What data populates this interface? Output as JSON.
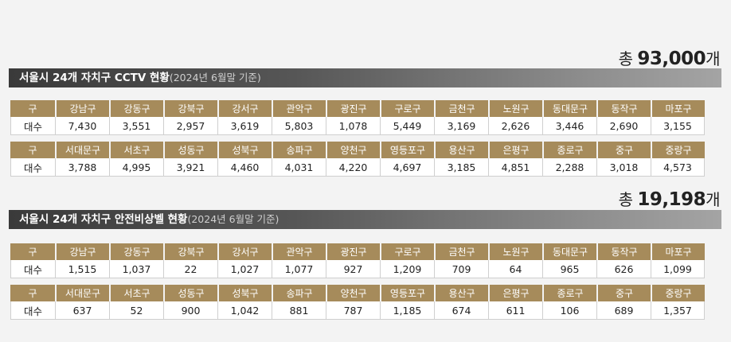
{
  "cctv": {
    "total_prefix": "총 ",
    "total_value": "93,000",
    "total_suffix": "개",
    "title_main": "서울시 24개 자치구 CCTV 현황",
    "title_sub": "(2024년 6월말 기준)",
    "tables": [
      {
        "header_label": "구",
        "value_label": "대수",
        "districts": [
          "강남구",
          "강동구",
          "강북구",
          "강서구",
          "관악구",
          "광진구",
          "구로구",
          "금천구",
          "노원구",
          "동대문구",
          "동작구",
          "마포구"
        ],
        "values": [
          "7,430",
          "3,551",
          "2,957",
          "3,619",
          "5,803",
          "1,078",
          "5,449",
          "3,169",
          "2,626",
          "3,446",
          "2,690",
          "3,155"
        ]
      },
      {
        "header_label": "구",
        "value_label": "대수",
        "districts": [
          "서대문구",
          "서초구",
          "성동구",
          "성북구",
          "송파구",
          "양천구",
          "영등포구",
          "용산구",
          "은평구",
          "종로구",
          "중구",
          "중랑구"
        ],
        "values": [
          "3,788",
          "4,995",
          "3,921",
          "4,460",
          "4,031",
          "4,220",
          "4,697",
          "3,185",
          "4,851",
          "2,288",
          "3,018",
          "4,573"
        ]
      }
    ]
  },
  "bell": {
    "total_prefix": "총 ",
    "total_value": "19,198",
    "total_suffix": "개",
    "title_main": "서울시 24개 자치구 안전비상벨 현황",
    "title_sub": "(2024년 6월말 기준)",
    "tables": [
      {
        "header_label": "구",
        "value_label": "대수",
        "districts": [
          "강남구",
          "강동구",
          "강북구",
          "강서구",
          "관악구",
          "광진구",
          "구로구",
          "금천구",
          "노원구",
          "동대문구",
          "동작구",
          "마포구"
        ],
        "values": [
          "1,515",
          "1,037",
          "22",
          "1,027",
          "1,077",
          "927",
          "1,209",
          "709",
          "64",
          "965",
          "626",
          "1,099"
        ]
      },
      {
        "header_label": "구",
        "value_label": "대수",
        "districts": [
          "서대문구",
          "서초구",
          "성동구",
          "성북구",
          "송파구",
          "양천구",
          "영등포구",
          "용산구",
          "은평구",
          "종로구",
          "중구",
          "중랑구"
        ],
        "values": [
          "637",
          "52",
          "900",
          "1,042",
          "881",
          "787",
          "1,185",
          "674",
          "611",
          "106",
          "689",
          "1,357"
        ]
      }
    ]
  },
  "colors": {
    "header_bg": "#a68b5b",
    "title_bar_dark": "#3a3a3a",
    "page_bg": "#f3f3f3"
  }
}
